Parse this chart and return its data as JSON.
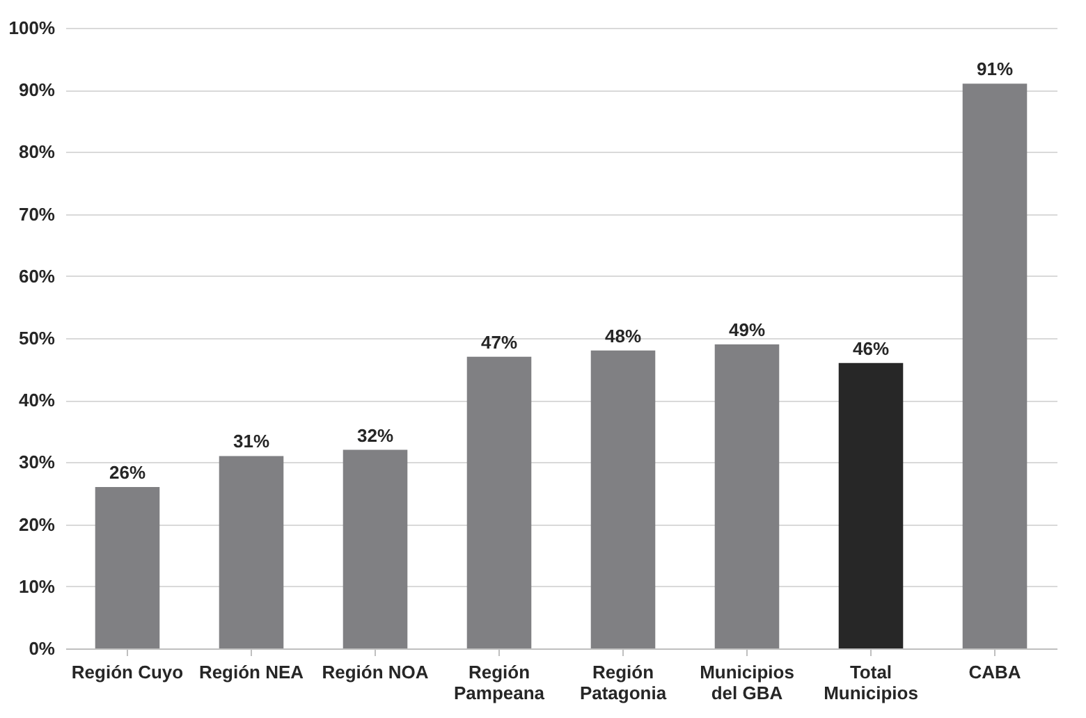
{
  "chart_data": {
    "type": "bar",
    "categories": [
      "Región Cuyo",
      "Región NEA",
      "Región NOA",
      "Región Pampeana",
      "Región Patagonia",
      "Municipios del GBA",
      "Total Municipios",
      "CABA"
    ],
    "values": [
      26,
      31,
      32,
      47,
      48,
      49,
      46,
      91
    ],
    "colors": [
      "#808083",
      "#808083",
      "#808083",
      "#808083",
      "#808083",
      "#808083",
      "#272727",
      "#808083"
    ],
    "value_labels": [
      "26%",
      "31%",
      "32%",
      "47%",
      "48%",
      "49%",
      "46%",
      "91%"
    ],
    "ylim": [
      0,
      100
    ],
    "yticks": [
      {
        "value": 0,
        "label": "0%"
      },
      {
        "value": 10,
        "label": "10%"
      },
      {
        "value": 20,
        "label": "20%"
      },
      {
        "value": 30,
        "label": "30%"
      },
      {
        "value": 40,
        "label": "40%"
      },
      {
        "value": 50,
        "label": "50%"
      },
      {
        "value": 60,
        "label": "60%"
      },
      {
        "value": 70,
        "label": "70%"
      },
      {
        "value": 80,
        "label": "80%"
      },
      {
        "value": 90,
        "label": "90%"
      },
      {
        "value": 100,
        "label": "100%"
      }
    ],
    "grid": "y"
  }
}
